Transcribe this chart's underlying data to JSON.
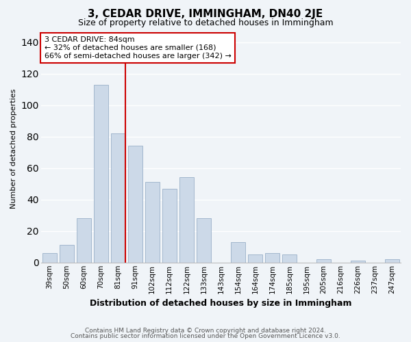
{
  "title": "3, CEDAR DRIVE, IMMINGHAM, DN40 2JE",
  "subtitle": "Size of property relative to detached houses in Immingham",
  "xlabel": "Distribution of detached houses by size in Immingham",
  "ylabel": "Number of detached properties",
  "categories": [
    "39sqm",
    "50sqm",
    "60sqm",
    "70sqm",
    "81sqm",
    "91sqm",
    "102sqm",
    "112sqm",
    "122sqm",
    "133sqm",
    "143sqm",
    "154sqm",
    "164sqm",
    "174sqm",
    "185sqm",
    "195sqm",
    "205sqm",
    "216sqm",
    "226sqm",
    "237sqm",
    "247sqm"
  ],
  "values": [
    6,
    11,
    28,
    113,
    82,
    74,
    51,
    47,
    54,
    28,
    0,
    13,
    5,
    6,
    5,
    0,
    2,
    0,
    1,
    0,
    2
  ],
  "bar_color": "#ccd9e8",
  "bar_edge_color": "#9ab0c8",
  "vline_x_index": 4,
  "vline_color": "#cc0000",
  "ylim": [
    0,
    145
  ],
  "yticks": [
    0,
    20,
    40,
    60,
    80,
    100,
    120,
    140
  ],
  "annotation_title": "3 CEDAR DRIVE: 84sqm",
  "annotation_line1": "← 32% of detached houses are smaller (168)",
  "annotation_line2": "66% of semi-detached houses are larger (342) →",
  "annotation_box_color": "#ffffff",
  "annotation_box_edge": "#cc0000",
  "footer_line1": "Contains HM Land Registry data © Crown copyright and database right 2024.",
  "footer_line2": "Contains public sector information licensed under the Open Government Licence v3.0.",
  "background_color": "#f0f4f8",
  "plot_background": "#f0f4f8",
  "title_fontsize": 11,
  "subtitle_fontsize": 9,
  "xlabel_fontsize": 9,
  "ylabel_fontsize": 8,
  "tick_fontsize": 7.5,
  "annotation_fontsize": 8,
  "footer_fontsize": 6.5
}
